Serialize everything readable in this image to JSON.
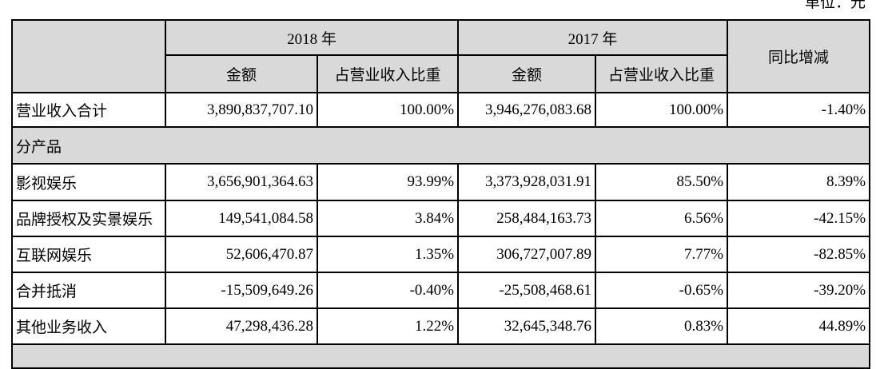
{
  "unit_label": "单位：元",
  "header": {
    "year_2018": "2018 年",
    "year_2017": "2017 年",
    "amount": "金额",
    "ratio": "占营业收入比重",
    "yoy": "同比增减"
  },
  "rows": [
    {
      "label": "营业收入合计",
      "amt2018": "3,890,837,707.10",
      "ratio2018": "100.00%",
      "amt2017": "3,946,276,083.68",
      "ratio2017": "100.00%",
      "yoy": "-1.40%"
    },
    {
      "section": "分产品"
    },
    {
      "label": "影视娱乐",
      "amt2018": "3,656,901,364.63",
      "ratio2018": "93.99%",
      "amt2017": "3,373,928,031.91",
      "ratio2017": "85.50%",
      "yoy": "8.39%"
    },
    {
      "label": "品牌授权及实景娱乐",
      "amt2018": "149,541,084.58",
      "ratio2018": "3.84%",
      "amt2017": "258,484,163.73",
      "ratio2017": "6.56%",
      "yoy": "-42.15%"
    },
    {
      "label": "互联网娱乐",
      "amt2018": "52,606,470.87",
      "ratio2018": "1.35%",
      "amt2017": "306,727,007.89",
      "ratio2017": "7.77%",
      "yoy": "-82.85%"
    },
    {
      "label": "合并抵消",
      "amt2018": "-15,509,649.26",
      "ratio2018": "-0.40%",
      "amt2017": "-25,508,468.61",
      "ratio2017": "-0.65%",
      "yoy": "-39.20%"
    },
    {
      "label": "其他业务收入",
      "amt2018": "47,298,436.28",
      "ratio2018": "1.22%",
      "amt2017": "32,645,348.76",
      "ratio2017": "0.83%",
      "yoy": "44.89%"
    }
  ],
  "colors": {
    "header_bg": "#d9d9d9",
    "border": "#000000"
  }
}
